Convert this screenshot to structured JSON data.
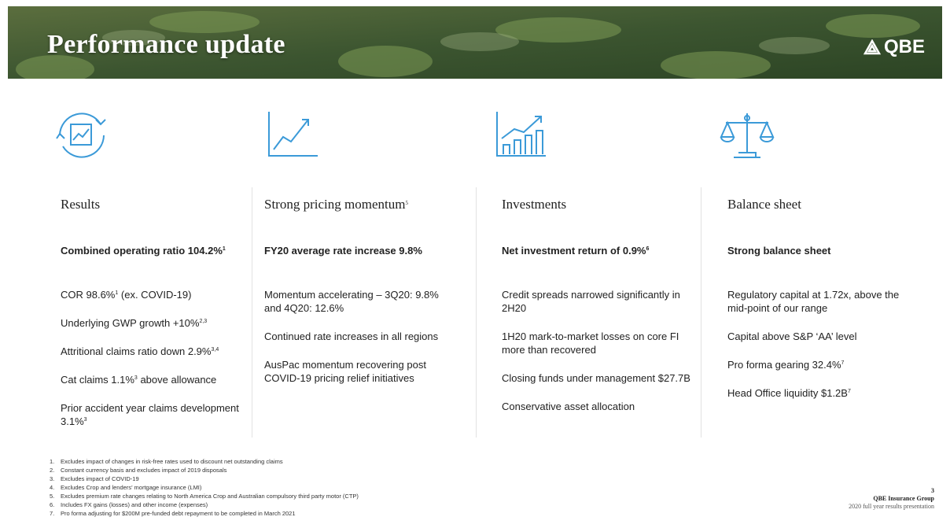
{
  "header": {
    "title": "Performance update",
    "logo": "QBE"
  },
  "columns": [
    {
      "heading": [
        {
          "text": "Results"
        }
      ],
      "lead": [
        {
          "text": "Combined operating ratio 104.2%"
        },
        {
          "sup": "1"
        }
      ],
      "items": [
        [
          {
            "text": "COR 98.6%"
          },
          {
            "sup": "1"
          },
          {
            "text": " (ex. COVID-19)"
          }
        ],
        [
          {
            "text": "Underlying GWP growth +10%"
          },
          {
            "sup": "2,3"
          }
        ],
        [
          {
            "text": "Attritional claims ratio down 2.9%"
          },
          {
            "sup": "3,4"
          }
        ],
        [
          {
            "text": "Cat claims 1.1%"
          },
          {
            "sup": "3"
          },
          {
            "text": " above allowance"
          }
        ],
        [
          {
            "text": "Prior accident year claims development 3.1%"
          },
          {
            "sup": "3"
          }
        ]
      ]
    },
    {
      "heading": [
        {
          "text": "Strong pricing momentum"
        },
        {
          "sup": "5"
        }
      ],
      "lead": [
        {
          "text": "FY20 average rate increase 9.8%"
        }
      ],
      "items": [
        [
          {
            "text": "Momentum accelerating – 3Q20: 9.8% and 4Q20: 12.6%"
          }
        ],
        [
          {
            "text": "Continued rate increases in all regions"
          }
        ],
        [
          {
            "text": "AusPac momentum recovering post COVID-19 pricing relief initiatives"
          }
        ]
      ]
    },
    {
      "heading": [
        {
          "text": "Investments"
        }
      ],
      "lead": [
        {
          "text": "Net investment return of 0.9%"
        },
        {
          "sup": "6"
        }
      ],
      "items": [
        [
          {
            "text": "Credit spreads narrowed significantly in 2H20"
          }
        ],
        [
          {
            "text": "1H20 mark-to-market losses on core FI more than recovered"
          }
        ],
        [
          {
            "text": "Closing funds under management $27.7B"
          }
        ],
        [
          {
            "text": "Conservative asset allocation"
          }
        ]
      ]
    },
    {
      "heading": [
        {
          "text": "Balance sheet"
        }
      ],
      "lead": [
        {
          "text": "Strong balance sheet"
        }
      ],
      "items": [
        [
          {
            "text": "Regulatory capital at 1.72x, above the mid-point of our range"
          }
        ],
        [
          {
            "text": "Capital above S&P ‘AA’ level"
          }
        ],
        [
          {
            "text": "Pro forma gearing 32.4%"
          },
          {
            "sup": "7"
          }
        ],
        [
          {
            "text": "Head Office liquidity $1.2B"
          },
          {
            "sup": "7"
          }
        ]
      ]
    }
  ],
  "footnotes": [
    {
      "number": "1.",
      "text": "Excludes impact of changes in risk-free rates used to discount net outstanding claims"
    },
    {
      "number": "2.",
      "text": "Constant currency basis and excludes impact of 2019 disposals"
    },
    {
      "number": "3.",
      "text": "Excludes impact of COVID-19"
    },
    {
      "number": "4.",
      "text": "Excludes Crop and lenders’ mortgage insurance (LMI)"
    },
    {
      "number": "5.",
      "text": "Excludes premium rate changes relating to North America Crop and Australian compulsory third party motor (CTP)"
    },
    {
      "number": "6.",
      "text": "Includes FX gains (losses) and other income (expenses)"
    },
    {
      "number": "7.",
      "text": "Pro forma adjusting for $200M pre-funded debt repayment to be completed in March 2021"
    }
  ],
  "footer": {
    "page": "3",
    "company": "QBE Insurance Group",
    "presentation": "2020 full year results presentation"
  }
}
